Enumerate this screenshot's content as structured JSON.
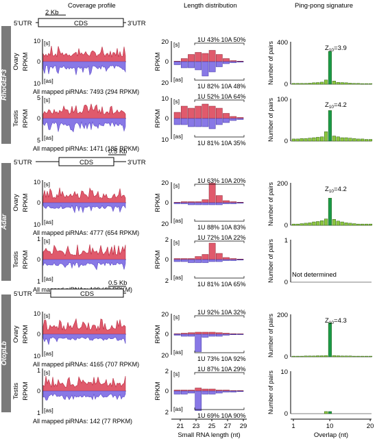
{
  "headers": {
    "coverage": "Coverage profile",
    "length": "Length distribution",
    "pingpong": "Ping-pong signature"
  },
  "axis_labels": {
    "rpkm": "RPKM",
    "pairs": "Number of pairs",
    "sense": "[s]",
    "antisense": "[as]",
    "small_rna_length": "Small RNA length (nt)",
    "overlap": "Overlap (nt)",
    "not_determined": "Not determined"
  },
  "length_ticks": [
    "21",
    "23",
    "25",
    "27",
    "29"
  ],
  "overlap_ticks": [
    "1",
    "10",
    "20"
  ],
  "colors": {
    "sense": "#e05a6c",
    "antisense": "#8878e6",
    "pingpong_bar": "#8dc63f",
    "pingpong_peak": "#1a9a4a",
    "side_label_bg": "#7a7a7a"
  },
  "genes": [
    {
      "name": "RhoGEF3",
      "gene_model": {
        "scale": "2 Kb",
        "utr5": "5'UTR",
        "cds": "CDS",
        "utr3": "3'UTR"
      },
      "rows": [
        {
          "tissue": "Ovary",
          "cov_scale": [
            "10",
            "0",
            "10"
          ],
          "mapped": "All mapped piRNAs: 7493 (294 RPKM)",
          "len_scale": [
            "20",
            "0",
            "20"
          ],
          "sense_stats": "1U 43% 10A 50%",
          "antisense_stats": "1U 82% 10A 48%",
          "pp_scale": [
            "400",
            "0"
          ],
          "z10": "3.9"
        },
        {
          "tissue": "Testis",
          "cov_scale": [
            "5",
            "0",
            "5"
          ],
          "mapped": "All mapped piRNAs: 1471 (185 RPKM)",
          "len_scale": [
            "10",
            "0",
            "10"
          ],
          "sense_stats": "1U 52% 10A 64%",
          "antisense_stats": "1U 81% 10A 35%",
          "pp_scale": [
            "100",
            "0"
          ],
          "z10": "4.2"
        }
      ]
    },
    {
      "name": "Adar",
      "gene_model": {
        "scale": "0.5 Kb",
        "utr5": "5'UTR",
        "cds": "CDS",
        "utr3": "3'UTR"
      },
      "rows": [
        {
          "tissue": "Ovary",
          "cov_scale": [
            "10",
            "0",
            "10"
          ],
          "mapped": "All mapped piRNAs: 4777 (654 RPKM)",
          "len_scale": [
            "20",
            "0",
            "20"
          ],
          "sense_stats": "1U 63% 10A 20%",
          "antisense_stats": "1U 88% 10A 83%",
          "pp_scale": [
            "200",
            "0"
          ],
          "z10": "4.2"
        },
        {
          "tissue": "Testis",
          "cov_scale": [
            "1",
            "0",
            "1"
          ],
          "mapped": "All mapped piRNAs: 109 (48 RPKM)",
          "len_scale": [
            "2",
            "0",
            "2"
          ],
          "sense_stats": "1U 72% 10A 22%",
          "antisense_stats": "1U 81% 10A 65%",
          "pp_scale": [
            "1",
            "0"
          ],
          "z10": ""
        }
      ]
    },
    {
      "name": "OtopLb",
      "gene_model": {
        "scale": "0.5 Kb",
        "utr5": "5'UTR",
        "cds": "CDS",
        "utr3": ""
      },
      "rows": [
        {
          "tissue": "Ovary",
          "cov_scale": [
            "10",
            "0",
            "10"
          ],
          "mapped": "All mapped piRNAs: 4165 (707 RPKM)",
          "len_scale": [
            "20",
            "0",
            "20"
          ],
          "sense_stats": "1U 92% 10A 32%",
          "antisense_stats": "1U 73% 10A 92%",
          "pp_scale": [
            "200",
            "0"
          ],
          "z10": "4.3"
        },
        {
          "tissue": "Testis",
          "cov_scale": [
            "1",
            "0",
            "1"
          ],
          "mapped": "All mapped piRNAs: 142 (77 RPKM)",
          "len_scale": [
            "2",
            "0",
            "2"
          ],
          "sense_stats": "1U 87% 10A 29%",
          "antisense_stats": "1U 69% 10A 90%",
          "pp_scale": [
            "10",
            "0"
          ],
          "z10": ""
        }
      ]
    }
  ],
  "chart_data": [
    {
      "type": "bar",
      "gene": "RhoGEF3",
      "tissue": "Ovary",
      "x": [
        20,
        21,
        22,
        23,
        24,
        25,
        26,
        27,
        28,
        29
      ],
      "sense": [
        0.5,
        3,
        7,
        9,
        8,
        11,
        7,
        3,
        1,
        0.5
      ],
      "antisense": [
        3,
        6,
        6,
        8,
        14,
        10,
        5,
        2,
        1,
        0.5
      ],
      "ylim": [
        -20,
        20
      ]
    },
    {
      "type": "bar",
      "gene": "RhoGEF3",
      "tissue": "Testis",
      "x": [
        20,
        21,
        22,
        23,
        24,
        25,
        26,
        27,
        28,
        29
      ],
      "sense": [
        3,
        6,
        5,
        6,
        7,
        6,
        5,
        2.5,
        1,
        0.5
      ],
      "antisense": [
        3,
        3,
        4,
        4,
        4,
        5,
        3,
        2,
        1,
        0.5
      ],
      "ylim": [
        -10,
        10
      ]
    },
    {
      "type": "bar",
      "gene": "Adar",
      "tissue": "Ovary",
      "x": [
        20,
        21,
        22,
        23,
        24,
        25,
        26,
        27,
        28,
        29
      ],
      "sense": [
        0.5,
        1,
        1,
        1,
        3,
        19,
        7,
        2,
        1,
        0.5
      ],
      "antisense": [
        1,
        1,
        2,
        2,
        2,
        2,
        2,
        1,
        1,
        0.5
      ],
      "ylim": [
        -20,
        20
      ]
    },
    {
      "type": "bar",
      "gene": "Adar",
      "tissue": "Testis",
      "x": [
        20,
        21,
        22,
        23,
        24,
        25,
        26,
        27,
        28,
        29
      ],
      "sense": [
        0.1,
        0.1,
        0.1,
        0.3,
        0.5,
        1.6,
        0.6,
        0.2,
        0.1,
        0.05
      ],
      "antisense": [
        0.2,
        0.2,
        0.3,
        0.3,
        0.3,
        0.2,
        0.2,
        0.1,
        0.1,
        0.05
      ],
      "ylim": [
        -2,
        2
      ]
    },
    {
      "type": "bar",
      "gene": "OtopLb",
      "tissue": "Ovary",
      "x": [
        20,
        21,
        22,
        23,
        24,
        25,
        26,
        27,
        28,
        29
      ],
      "sense": [
        0.5,
        1,
        1.5,
        2,
        2,
        2,
        1.5,
        1,
        0.5,
        0.3
      ],
      "antisense": [
        1,
        2,
        2,
        17,
        3,
        2,
        2,
        1,
        0.5,
        0.3
      ],
      "ylim": [
        -20,
        20
      ]
    },
    {
      "type": "bar",
      "gene": "OtopLb",
      "tissue": "Testis",
      "x": [
        20,
        21,
        22,
        23,
        24,
        25,
        26,
        27,
        28,
        29
      ],
      "sense": [
        0.1,
        0.1,
        0.1,
        0.3,
        0.2,
        0.2,
        0.1,
        0.1,
        0.05,
        0.05
      ],
      "antisense": [
        0.3,
        0.3,
        0.2,
        1.9,
        0.3,
        0.3,
        0.2,
        0.1,
        0.1,
        0.05
      ],
      "ylim": [
        -2,
        2
      ]
    },
    {
      "type": "bar",
      "gene": "RhoGEF3",
      "tissue": "Ovary",
      "chart": "pingpong",
      "x": [
        1,
        2,
        3,
        4,
        5,
        6,
        7,
        8,
        9,
        10,
        11,
        12,
        13,
        14,
        15,
        16,
        17,
        18,
        19,
        20
      ],
      "values": [
        8,
        8,
        8,
        8,
        10,
        14,
        16,
        20,
        40,
        310,
        30,
        18,
        16,
        14,
        10,
        8,
        8,
        6,
        6,
        6
      ],
      "ylim": [
        0,
        400
      ]
    },
    {
      "type": "bar",
      "gene": "RhoGEF3",
      "tissue": "Testis",
      "chart": "pingpong",
      "x": [
        1,
        2,
        3,
        4,
        5,
        6,
        7,
        8,
        9,
        10,
        11,
        12,
        13,
        14,
        15,
        16,
        17,
        18,
        19,
        20
      ],
      "values": [
        5,
        5,
        6,
        6,
        7,
        8,
        9,
        10,
        22,
        72,
        12,
        10,
        8,
        8,
        7,
        6,
        5,
        5,
        4,
        4
      ],
      "ylim": [
        0,
        100
      ]
    },
    {
      "type": "bar",
      "gene": "Adar",
      "tissue": "Ovary",
      "chart": "pingpong",
      "x": [
        1,
        2,
        3,
        4,
        5,
        6,
        7,
        8,
        9,
        10,
        11,
        12,
        13,
        14,
        15,
        16,
        17,
        18,
        19,
        20
      ],
      "values": [
        6,
        6,
        8,
        10,
        12,
        16,
        18,
        22,
        30,
        128,
        28,
        20,
        16,
        12,
        10,
        8,
        6,
        6,
        6,
        6
      ],
      "ylim": [
        0,
        200
      ]
    },
    {
      "type": "bar",
      "gene": "OtopLb",
      "tissue": "Ovary",
      "chart": "pingpong",
      "x": [
        1,
        2,
        3,
        4,
        5,
        6,
        7,
        8,
        9,
        10,
        11,
        12,
        13,
        14,
        15,
        16,
        17,
        18,
        19,
        20
      ],
      "values": [
        3,
        3,
        3,
        4,
        4,
        4,
        5,
        5,
        6,
        160,
        6,
        5,
        4,
        4,
        4,
        3,
        3,
        3,
        3,
        3
      ],
      "ylim": [
        0,
        200
      ]
    },
    {
      "type": "bar",
      "gene": "OtopLb",
      "tissue": "Testis",
      "chart": "pingpong",
      "x": [
        1,
        2,
        3,
        4,
        5,
        6,
        7,
        8,
        9,
        10,
        11,
        12,
        13,
        14,
        15,
        16,
        17,
        18,
        19,
        20
      ],
      "values": [
        0,
        0,
        0,
        0,
        0,
        0,
        0,
        0,
        0.5,
        0.5,
        0,
        0,
        0,
        0,
        0,
        0,
        0,
        0,
        0,
        0
      ],
      "ylim": [
        0,
        10
      ]
    }
  ]
}
